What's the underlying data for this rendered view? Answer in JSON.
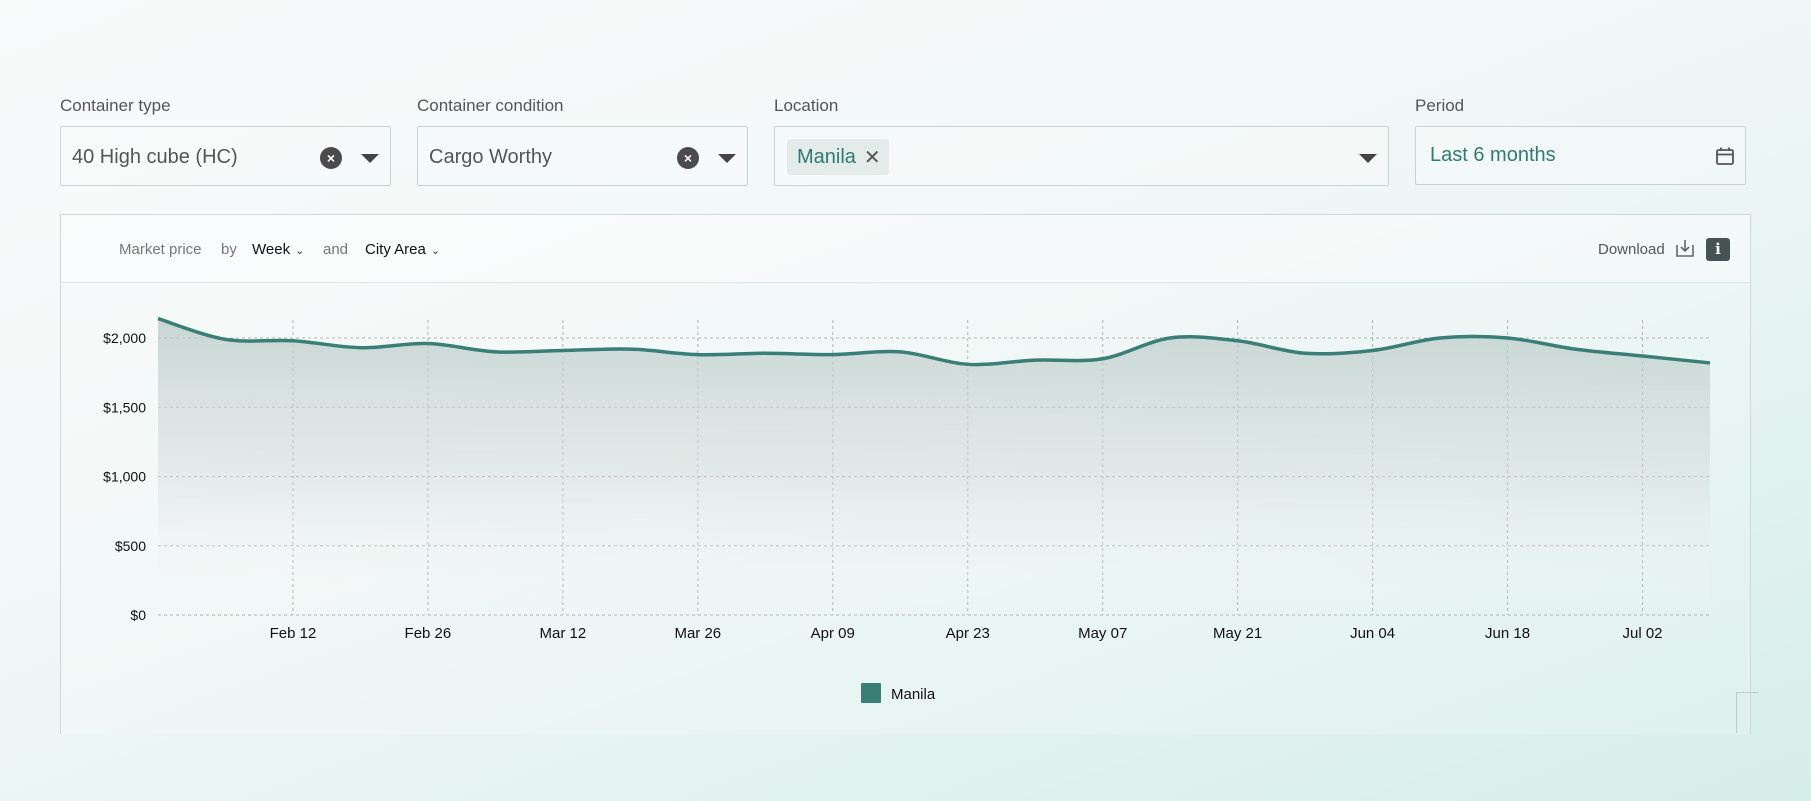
{
  "filters": {
    "container_type": {
      "label": "Container type",
      "value": "40 High cube (HC)"
    },
    "container_condition": {
      "label": "Container condition",
      "value": "Cargo Worthy"
    },
    "location": {
      "label": "Location",
      "chip": "Manila"
    },
    "period": {
      "label": "Period",
      "value": "Last 6 months"
    }
  },
  "card_header": {
    "metric": "Market price",
    "by": "by",
    "group1": "Week",
    "and": "and",
    "group2": "City Area",
    "download": "Download"
  },
  "colors": {
    "accent": "#2f7a72",
    "line": "#3a7f76",
    "grid": "#b3b3b3"
  },
  "icons": [
    "clear-icon",
    "caret-down-icon",
    "close-icon",
    "calendar-icon",
    "download-icon",
    "info-icon"
  ],
  "chart_data": {
    "type": "area",
    "x_tick_labels": [
      "Feb 12",
      "Feb 26",
      "Mar 12",
      "Mar 26",
      "Apr 09",
      "Apr 23",
      "May 07",
      "May 21",
      "Jun 04",
      "Jun 18",
      "Jul 02"
    ],
    "y_tick_labels": [
      "$0",
      "$500",
      "$1,000",
      "$1,500",
      "$2,000"
    ],
    "ylim": [
      0,
      2000
    ],
    "grid": true,
    "legend_position": "bottom-center",
    "series": [
      {
        "name": "Manila",
        "x": [
          "Jan 30",
          "Feb 06",
          "Feb 13",
          "Feb 20",
          "Feb 27",
          "Mar 06",
          "Mar 13",
          "Mar 20",
          "Mar 27",
          "Apr 03",
          "Apr 10",
          "Apr 17",
          "Apr 24",
          "May 01",
          "May 08",
          "May 15",
          "May 22",
          "May 29",
          "Jun 05",
          "Jun 12",
          "Jun 19",
          "Jun 26",
          "Jul 03",
          "Jul 10"
        ],
        "values": [
          2140,
          1990,
          1980,
          1930,
          1960,
          1900,
          1910,
          1920,
          1880,
          1890,
          1880,
          1900,
          1810,
          1840,
          1850,
          2000,
          1980,
          1890,
          1910,
          2000,
          2000,
          1920,
          1870,
          1820
        ]
      }
    ]
  }
}
